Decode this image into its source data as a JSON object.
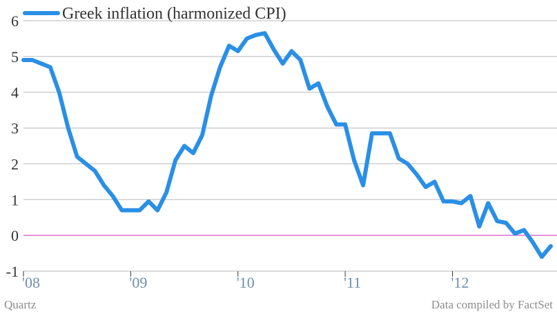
{
  "chart_data": {
    "type": "line",
    "series": [
      {
        "name": "Greek inflation (harmonized CPI)",
        "color": "#2a8fe6",
        "x": [
          2008.0,
          2008.083,
          2008.167,
          2008.25,
          2008.333,
          2008.417,
          2008.5,
          2008.583,
          2008.667,
          2008.75,
          2008.833,
          2008.917,
          2009.0,
          2009.083,
          2009.167,
          2009.25,
          2009.333,
          2009.417,
          2009.5,
          2009.583,
          2009.667,
          2009.75,
          2009.833,
          2009.917,
          2010.0,
          2010.083,
          2010.167,
          2010.25,
          2010.333,
          2010.417,
          2010.5,
          2010.583,
          2010.667,
          2010.75,
          2010.833,
          2010.917,
          2011.0,
          2011.083,
          2011.167,
          2011.25,
          2011.333,
          2011.417,
          2011.5,
          2011.583,
          2011.667,
          2011.75,
          2011.833,
          2011.917,
          2012.0,
          2012.083,
          2012.167,
          2012.25,
          2012.333,
          2012.417,
          2012.5,
          2012.583,
          2012.667,
          2012.75,
          2012.833,
          2012.917
        ],
        "values": [
          4.9,
          4.9,
          4.8,
          4.7,
          4.0,
          3.0,
          2.2,
          2.0,
          1.8,
          1.4,
          1.1,
          0.7,
          0.7,
          0.7,
          0.95,
          0.7,
          1.2,
          2.1,
          2.5,
          2.3,
          2.8,
          3.9,
          4.7,
          5.3,
          5.15,
          5.5,
          5.6,
          5.65,
          5.2,
          4.8,
          5.15,
          4.9,
          4.1,
          4.25,
          3.6,
          3.1,
          3.1,
          2.1,
          1.4,
          2.85,
          2.85,
          2.85,
          2.15,
          2.0,
          1.7,
          1.35,
          1.5,
          0.95,
          0.95,
          0.9,
          1.1,
          0.25,
          0.9,
          0.4,
          0.35,
          0.05,
          0.15,
          -0.2,
          -0.6,
          -0.3
        ]
      }
    ],
    "xticks": [
      {
        "x": 2008.0,
        "label": "'08"
      },
      {
        "x": 2009.0,
        "label": "'09"
      },
      {
        "x": 2010.0,
        "label": "'10"
      },
      {
        "x": 2011.0,
        "label": "'11"
      },
      {
        "x": 2012.0,
        "label": "'12"
      }
    ],
    "yticks": [
      6,
      5,
      4,
      3,
      2,
      1,
      0,
      -1
    ],
    "xlim": [
      2008.0,
      2012.917
    ],
    "ylim": [
      -1,
      6
    ],
    "grid": true,
    "zero_line_color": "#d855c8",
    "legend": "top-left",
    "xlabel": "",
    "ylabel": ""
  },
  "footer": {
    "left_credit": "Quartz",
    "right_credit": "Data compiled by FactSet"
  }
}
